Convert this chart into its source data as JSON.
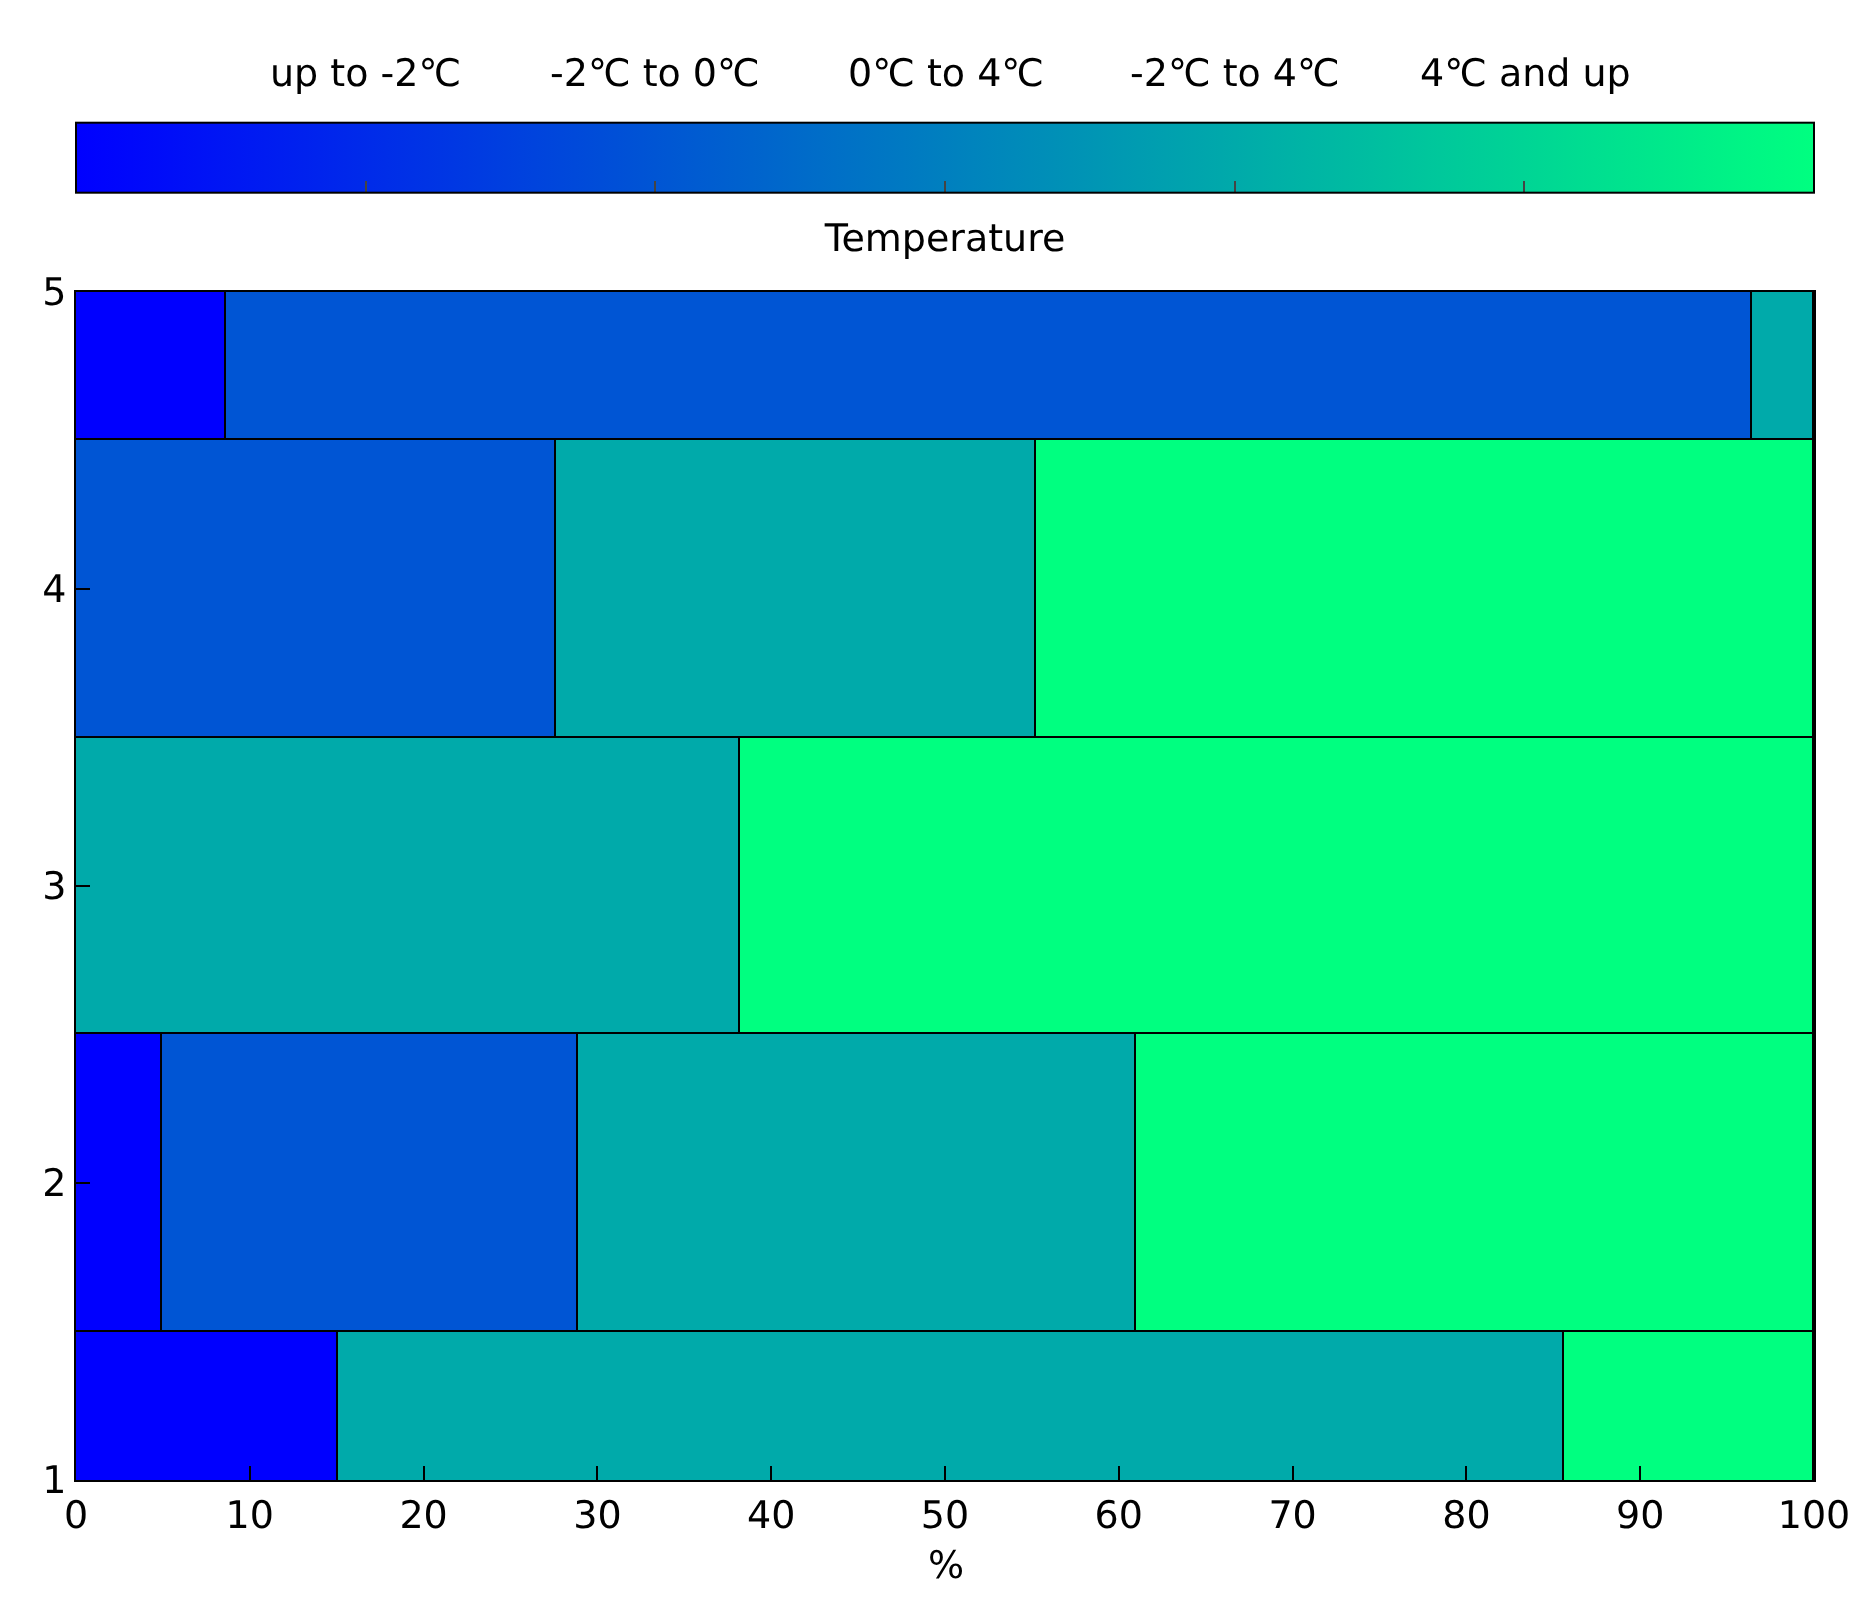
{
  "chart_data": {
    "type": "bar",
    "orientation": "horizontal",
    "stacked": true,
    "x": [
      1,
      2,
      3,
      4,
      5
    ],
    "series": [
      {
        "color": "#0000ff",
        "values": [
          15.1,
          4.9,
          null,
          null,
          8.6
        ]
      },
      {
        "color": "#0055d4",
        "values": [
          null,
          24.0,
          null,
          27.6,
          87.8
        ]
      },
      {
        "color": "#00aaaa",
        "values": [
          70.5,
          32.1,
          38.2,
          27.6,
          3.6
        ]
      },
      {
        "color": "#00ff80",
        "values": [
          14.4,
          39.0,
          61.8,
          44.8,
          null
        ]
      }
    ],
    "xlabel": "%",
    "xlim": [
      0,
      100
    ],
    "xticks": [
      0,
      10,
      20,
      30,
      40,
      50,
      60,
      70,
      80,
      90,
      100
    ],
    "ylim": [
      1,
      5
    ],
    "yticks": [
      1,
      2,
      3,
      4,
      5
    ],
    "clabel": "Temperature",
    "annotations": [
      "up to -2℃",
      "-2℃ to 0℃",
      "0℃ to 4℃",
      "-2℃ to 4℃",
      "4℃ and up"
    ]
  }
}
